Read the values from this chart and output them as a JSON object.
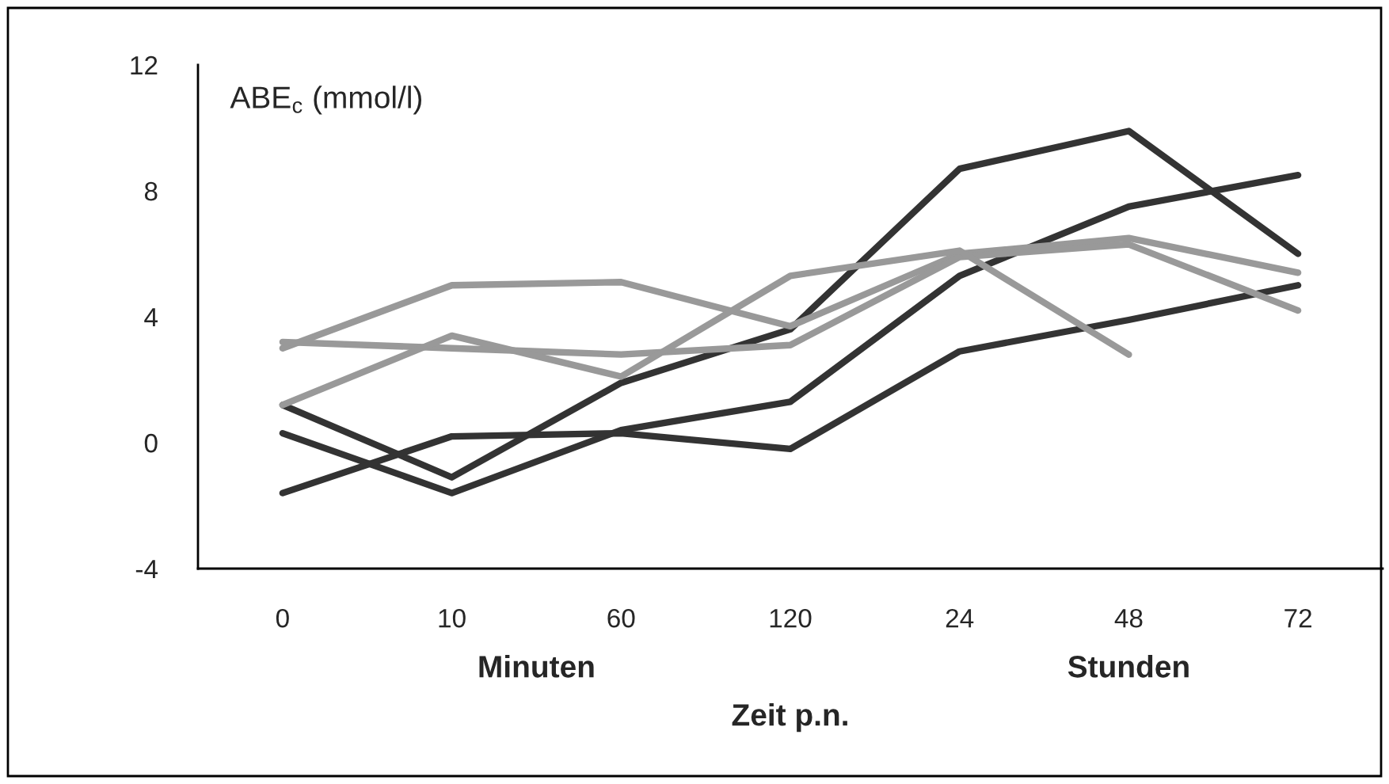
{
  "chart_data": {
    "type": "line",
    "ylabel": "ABE$_{c}$ (mmol/l)",
    "xlabel": "Zeit p.n.",
    "annotations": [
      "Minuten",
      "Stunden"
    ],
    "categories": [
      "0",
      "10",
      "60",
      "120",
      "24",
      "48",
      "72"
    ],
    "ylim": [
      -4,
      12
    ],
    "yticks": [
      -4,
      0,
      4,
      8,
      12
    ],
    "grid": false,
    "marker": "none",
    "line_style": "solid",
    "series": [
      {
        "color": "#333333",
        "values": [
          1.2,
          -1.1,
          1.9,
          3.6,
          8.7,
          9.9,
          6.0
        ]
      },
      {
        "color": "#333333",
        "values": [
          0.3,
          -1.6,
          0.4,
          1.3,
          5.3,
          7.5,
          8.5
        ]
      },
      {
        "color": "#333333",
        "values": [
          -1.6,
          0.2,
          0.3,
          -0.2,
          2.9,
          3.9,
          5.0
        ]
      },
      {
        "color": "#999999",
        "values": [
          3.0,
          5.0,
          5.1,
          3.7,
          6.0,
          6.5,
          5.4
        ]
      },
      {
        "color": "#999999",
        "values": [
          3.2,
          3.0,
          2.8,
          3.1,
          5.9,
          6.3,
          4.2
        ]
      },
      {
        "color": "#999999",
        "values": [
          1.2,
          3.4,
          2.1,
          5.3,
          6.1,
          2.8,
          null
        ]
      }
    ]
  }
}
